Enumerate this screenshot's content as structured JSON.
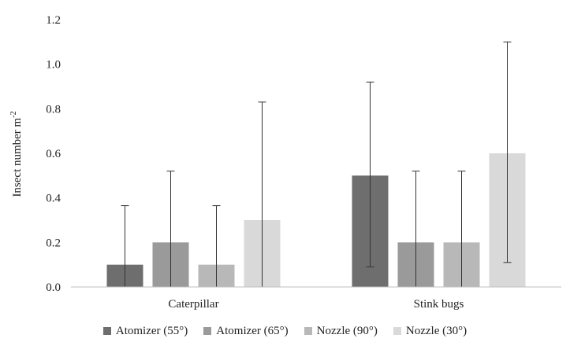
{
  "chart_data": {
    "type": "bar",
    "categories": [
      "Caterpillar",
      "Stink bugs"
    ],
    "series": [
      {
        "name": "Atomizer (55°)",
        "color": "#6e6e6e",
        "values": [
          0.1,
          0.5
        ],
        "error_upper": [
          0.365,
          0.92
        ],
        "error_lower": [
          0.0,
          0.09
        ]
      },
      {
        "name": "Atomizer (65°)",
        "color": "#9a9a9a",
        "values": [
          0.2,
          0.2
        ],
        "error_upper": [
          0.52,
          0.52
        ],
        "error_lower": [
          0.0,
          0.0
        ]
      },
      {
        "name": "Nozzle (90°)",
        "color": "#b8b8b8",
        "values": [
          0.1,
          0.2
        ],
        "error_upper": [
          0.365,
          0.52
        ],
        "error_lower": [
          0.0,
          0.0
        ]
      },
      {
        "name": "Nozzle (30°)",
        "color": "#d9d9d9",
        "values": [
          0.3,
          0.6
        ],
        "error_upper": [
          0.83,
          1.1
        ],
        "error_lower": [
          0.0,
          0.11
        ]
      }
    ],
    "ylabel_main": "Insect number m",
    "ylabel_sup": "-2",
    "ylim": [
      0,
      1.2
    ],
    "yticks": [
      "0.0",
      "0.2",
      "0.4",
      "0.6",
      "0.8",
      "1.0",
      "1.2"
    ],
    "grid": false,
    "legend_position": "bottom"
  }
}
